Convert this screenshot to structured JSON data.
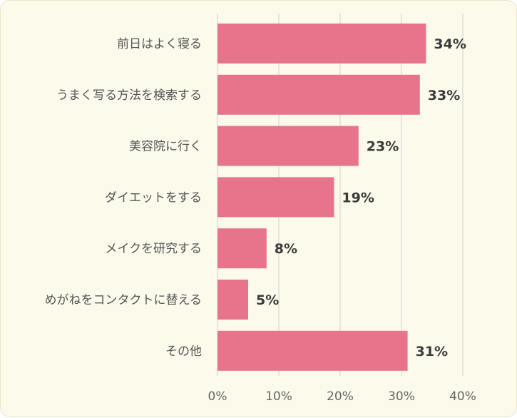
{
  "chart_data": {
    "type": "bar",
    "orientation": "horizontal",
    "categories": [
      "前日はよく寝る",
      "うまく写る方法を検索する",
      "美容院に行く",
      "ダイエットをする",
      "メイクを研究する",
      "めがねをコンタクトに替える",
      "その他"
    ],
    "values": [
      34,
      33,
      23,
      19,
      8,
      5,
      31
    ],
    "value_labels": [
      "34%",
      "33%",
      "23%",
      "19%",
      "8%",
      "5%",
      "31%"
    ],
    "xlim": [
      0,
      40
    ],
    "xticks": [
      0,
      10,
      20,
      30,
      40
    ],
    "xtick_labels": [
      "0%",
      "10%",
      "20%",
      "30%",
      "40%"
    ],
    "grid": true,
    "bar_color": "#e8748b",
    "background_color": "#fcfaeb"
  }
}
